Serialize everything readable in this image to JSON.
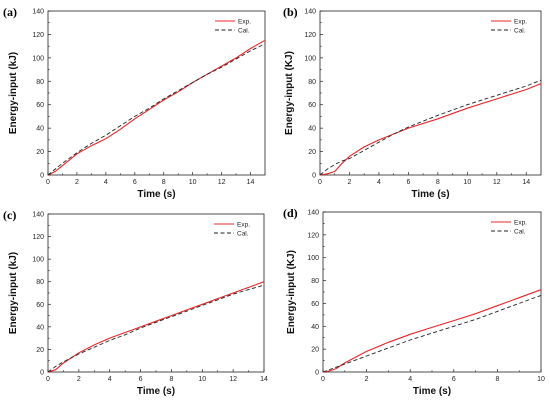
{
  "chart_data": [
    {
      "type": "line",
      "panel_label": "(a)",
      "xlabel": "Time (s)",
      "ylabel": "Energy-input (kJ)",
      "xlim": [
        0,
        15
      ],
      "ylim": [
        0,
        140
      ],
      "xticks": [
        0,
        2,
        4,
        6,
        8,
        10,
        12,
        14
      ],
      "xtick_labels": [
        "0",
        "2",
        "4",
        "6",
        "8",
        "10",
        "12",
        "14"
      ],
      "yticks": [
        0,
        20,
        40,
        60,
        80,
        100,
        120,
        140
      ],
      "ytick_labels": [
        "0",
        "20",
        "40",
        "60",
        "80",
        "100",
        "120",
        "140"
      ],
      "legend_position": "top-right",
      "grid": false,
      "series": [
        {
          "name": "Exp.",
          "style": "solid",
          "color": "#e8262a",
          "x": [
            0,
            0.5,
            1,
            2,
            3,
            3.5,
            4,
            5,
            6,
            7,
            8,
            9,
            10,
            11,
            12,
            13,
            14,
            15
          ],
          "y": [
            0,
            3,
            8,
            18,
            25,
            28,
            31,
            39,
            48,
            56,
            64,
            71,
            79,
            86,
            93,
            100,
            108,
            115
          ]
        },
        {
          "name": "Cal.",
          "style": "dashed",
          "color": "#222222",
          "x": [
            0,
            0.5,
            1,
            2,
            3,
            4,
            5,
            6,
            7,
            8,
            9,
            10,
            11,
            12,
            13,
            14,
            15
          ],
          "y": [
            0,
            5,
            10,
            19,
            27,
            34,
            42,
            50,
            57,
            65,
            72,
            79,
            86,
            92,
            99,
            106,
            112
          ]
        }
      ]
    },
    {
      "type": "line",
      "panel_label": "(b)",
      "xlabel": "Time (s)",
      "ylabel": "Energy-input (KJ)",
      "xlim": [
        0,
        15
      ],
      "ylim": [
        0,
        140
      ],
      "xticks": [
        0,
        2,
        4,
        6,
        8,
        10,
        12,
        14
      ],
      "xtick_labels": [
        "0",
        "2",
        "4",
        "6",
        "8",
        "10",
        "12",
        "14"
      ],
      "yticks": [
        0,
        20,
        40,
        60,
        80,
        100,
        120,
        140
      ],
      "ytick_labels": [
        "0",
        "20",
        "40",
        "60",
        "80",
        "100",
        "120",
        "140"
      ],
      "legend_position": "top-right",
      "grid": false,
      "series": [
        {
          "name": "Exp.",
          "style": "solid",
          "color": "#e8262a",
          "x": [
            0,
            0.5,
            1,
            1.5,
            2,
            3,
            4,
            5,
            6,
            8,
            10,
            12,
            14,
            15
          ],
          "y": [
            0,
            1,
            3,
            10,
            16,
            24,
            30,
            35,
            40,
            48,
            57,
            65,
            73,
            78
          ]
        },
        {
          "name": "Cal.",
          "style": "dashed",
          "color": "#222222",
          "x": [
            0,
            0.5,
            1,
            1.5,
            2,
            3,
            4,
            5,
            6,
            8,
            10,
            12,
            14,
            15
          ],
          "y": [
            0,
            5,
            9,
            12,
            14,
            21,
            28,
            35,
            41,
            51,
            60,
            68,
            76,
            81
          ]
        }
      ]
    },
    {
      "type": "line",
      "panel_label": "(c)",
      "xlabel": "Time (s)",
      "ylabel": "Energy-input (kJ)",
      "xlim": [
        0,
        14
      ],
      "ylim": [
        0,
        140
      ],
      "xticks": [
        0,
        2,
        4,
        6,
        8,
        10,
        12,
        14
      ],
      "xtick_labels": [
        "0",
        "2",
        "4",
        "6",
        "8",
        "10",
        "12",
        "14"
      ],
      "yticks": [
        0,
        20,
        40,
        60,
        80,
        100,
        120,
        140
      ],
      "ytick_labels": [
        "0",
        "20",
        "40",
        "60",
        "80",
        "100",
        "120",
        "140"
      ],
      "legend_position": "top-right",
      "grid": false,
      "series": [
        {
          "name": "Exp.",
          "style": "solid",
          "color": "#e8262a",
          "x": [
            0,
            0.5,
            1,
            2,
            3,
            4,
            5,
            6,
            7,
            8,
            9,
            10,
            11,
            12,
            13,
            14
          ],
          "y": [
            0,
            2,
            8,
            17,
            24,
            30,
            35,
            40,
            45,
            50,
            55,
            60,
            65,
            70,
            75,
            80
          ]
        },
        {
          "name": "Cal.",
          "style": "dashed",
          "color": "#222222",
          "x": [
            0,
            0.5,
            1,
            2,
            3,
            4,
            5,
            6,
            7,
            8,
            9,
            10,
            11,
            12,
            13,
            14
          ],
          "y": [
            0,
            5,
            9,
            16,
            22,
            28,
            33,
            39,
            44,
            49,
            54,
            59,
            64,
            69,
            73,
            77
          ]
        }
      ]
    },
    {
      "type": "line",
      "panel_label": "(d)",
      "xlabel": "Time (s)",
      "ylabel": "Energy-input (KJ)",
      "xlim": [
        0,
        10
      ],
      "ylim": [
        0,
        140
      ],
      "xticks": [
        0,
        2,
        4,
        6,
        8,
        10
      ],
      "xtick_labels": [
        "0",
        "2",
        "4",
        "6",
        "8",
        "10"
      ],
      "yticks": [
        0,
        20,
        40,
        60,
        80,
        100,
        120,
        140
      ],
      "ytick_labels": [
        "0",
        "20",
        "40",
        "60",
        "80",
        "100",
        "120",
        "140"
      ],
      "legend_position": "top-right",
      "grid": false,
      "series": [
        {
          "name": "Exp.",
          "style": "solid",
          "color": "#e8262a",
          "x": [
            0,
            0.3,
            0.6,
            1,
            2,
            3,
            4,
            5,
            6,
            7,
            8,
            9,
            10
          ],
          "y": [
            0,
            1,
            3,
            8,
            18,
            26,
            33,
            39,
            45,
            51,
            58,
            65,
            72
          ]
        },
        {
          "name": "Cal.",
          "style": "dashed",
          "color": "#222222",
          "x": [
            0,
            1,
            2,
            3,
            4,
            5,
            6,
            7,
            8,
            9,
            10
          ],
          "y": [
            0,
            7,
            14,
            21,
            28,
            34,
            40,
            46,
            53,
            60,
            67
          ]
        }
      ]
    }
  ]
}
